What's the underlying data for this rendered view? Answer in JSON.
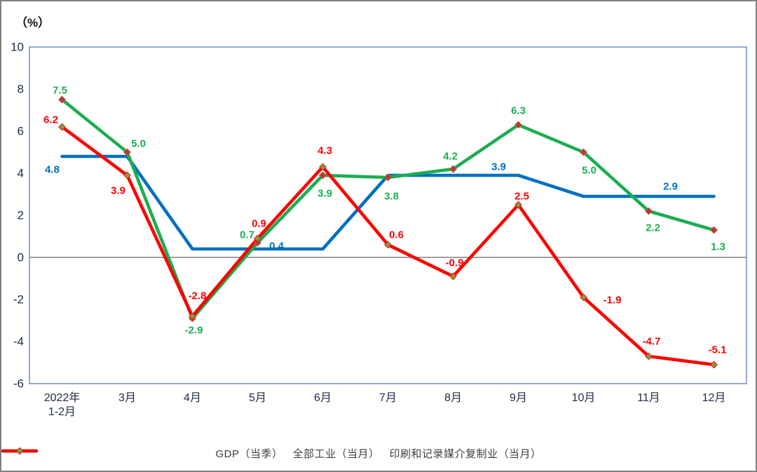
{
  "chart_data": {
    "type": "line",
    "title": "",
    "axis": {
      "unit": "（%）",
      "ylim": [
        -6,
        10
      ],
      "yticks": [
        10,
        8,
        6,
        4,
        2,
        0,
        -2,
        -4,
        -6
      ],
      "grid": "zero-line-only",
      "legend_position": "bottom-center"
    },
    "categories": [
      "2022年\n1-2月",
      "3月",
      "4月",
      "5月",
      "6月",
      "7月",
      "8月",
      "9月",
      "10月",
      "11月",
      "12月"
    ],
    "series": [
      {
        "id": "gdp",
        "name": "GDP（当季）",
        "color": "#0070C0",
        "marker": null,
        "values": [
          4.8,
          4.8,
          0.4,
          0.4,
          0.4,
          3.9,
          3.9,
          3.9,
          2.9,
          2.9,
          2.9
        ],
        "point_labels": [
          {
            "index": 0,
            "text": "4.8"
          },
          {
            "index": 3,
            "text": "0.4"
          },
          {
            "index": 7,
            "text": "3.9"
          },
          {
            "index": 9,
            "text": "2.9"
          }
        ]
      },
      {
        "id": "industry",
        "name": "全部工业（当月）",
        "color": "#1CAD52",
        "marker": {
          "fill": "#9A463C",
          "stroke": "#D9442F"
        },
        "values": [
          7.5,
          5.0,
          -2.9,
          0.7,
          3.9,
          3.8,
          4.2,
          6.3,
          5.0,
          2.2,
          1.3
        ],
        "point_labels": [
          {
            "index": 0,
            "text": "7.5"
          },
          {
            "index": 1,
            "text": "5.0"
          },
          {
            "index": 2,
            "text": "-2.9"
          },
          {
            "index": 3,
            "text": "0.7"
          },
          {
            "index": 4,
            "text": "3.9"
          },
          {
            "index": 5,
            "text": "3.8"
          },
          {
            "index": 6,
            "text": "4.2"
          },
          {
            "index": 7,
            "text": "6.3"
          },
          {
            "index": 8,
            "text": "5.0"
          },
          {
            "index": 9,
            "text": "2.2"
          },
          {
            "index": 10,
            "text": "1.3"
          }
        ]
      },
      {
        "id": "printing",
        "name": "印刷和记录媒介复制业（当月）",
        "color": "#FF0000",
        "marker": {
          "fill": "#79A23E",
          "stroke": "#E02B20"
        },
        "values": [
          6.2,
          3.9,
          -2.8,
          0.9,
          4.3,
          0.6,
          -0.9,
          2.5,
          -1.9,
          -4.7,
          -5.1
        ],
        "point_labels": [
          {
            "index": 0,
            "text": "6.2"
          },
          {
            "index": 1,
            "text": "3.9"
          },
          {
            "index": 2,
            "text": "-2.8"
          },
          {
            "index": 3,
            "text": "0.9"
          },
          {
            "index": 4,
            "text": "4.3"
          },
          {
            "index": 5,
            "text": "0.6"
          },
          {
            "index": 6,
            "text": "-0.9"
          },
          {
            "index": 7,
            "text": "2.5"
          },
          {
            "index": 8,
            "text": "-1.9"
          },
          {
            "index": 9,
            "text": "-4.7"
          },
          {
            "index": 10,
            "text": "-5.1"
          }
        ]
      }
    ],
    "colors": {
      "plot_border": "#7C9CC6",
      "zero_line": "#808080",
      "tick_text": "#1F2A44",
      "outer_border": "#808080",
      "legend_text": "#404040"
    }
  }
}
